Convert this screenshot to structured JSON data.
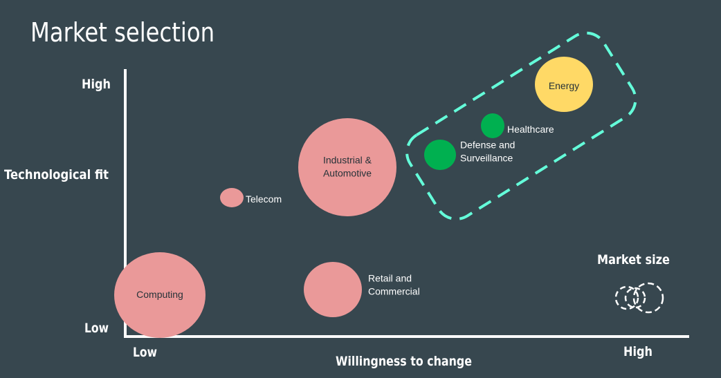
{
  "title": "Market selection",
  "axes": {
    "y_label": "Technological fit",
    "y_high": "High",
    "y_low": "Low",
    "x_label": "Willingness to change",
    "x_low": "Low",
    "x_high": "High"
  },
  "legend": {
    "title": "Market size"
  },
  "colors": {
    "background": "#37474f",
    "axis": "#ffffff",
    "pink": "#ea9999",
    "green": "#00b050",
    "yellow": "#ffd966",
    "highlight": "#64ffda"
  },
  "bubbles": [
    {
      "lines": [
        "Computing"
      ],
      "color": "pink",
      "label_color": "#263238",
      "size": "large"
    },
    {
      "lines": [
        "Industrial &",
        "Automotive"
      ],
      "color": "pink",
      "label_color": "#263238",
      "size": "large"
    },
    {
      "lines": [
        "Retail and",
        "Commercial"
      ],
      "color": "pink",
      "label_color": "#ffffff",
      "size": "medium"
    },
    {
      "lines": [
        "Telecom"
      ],
      "color": "pink",
      "label_color": "#ffffff",
      "size": "small"
    },
    {
      "lines": [
        "Defense and",
        "Surveillance"
      ],
      "color": "green",
      "label_color": "#ffffff",
      "size": "small"
    },
    {
      "lines": [
        "Healthcare"
      ],
      "color": "green",
      "label_color": "#ffffff",
      "size": "small"
    },
    {
      "lines": [
        "Energy"
      ],
      "color": "yellow",
      "label_color": "#263238",
      "size": "medium"
    }
  ]
}
